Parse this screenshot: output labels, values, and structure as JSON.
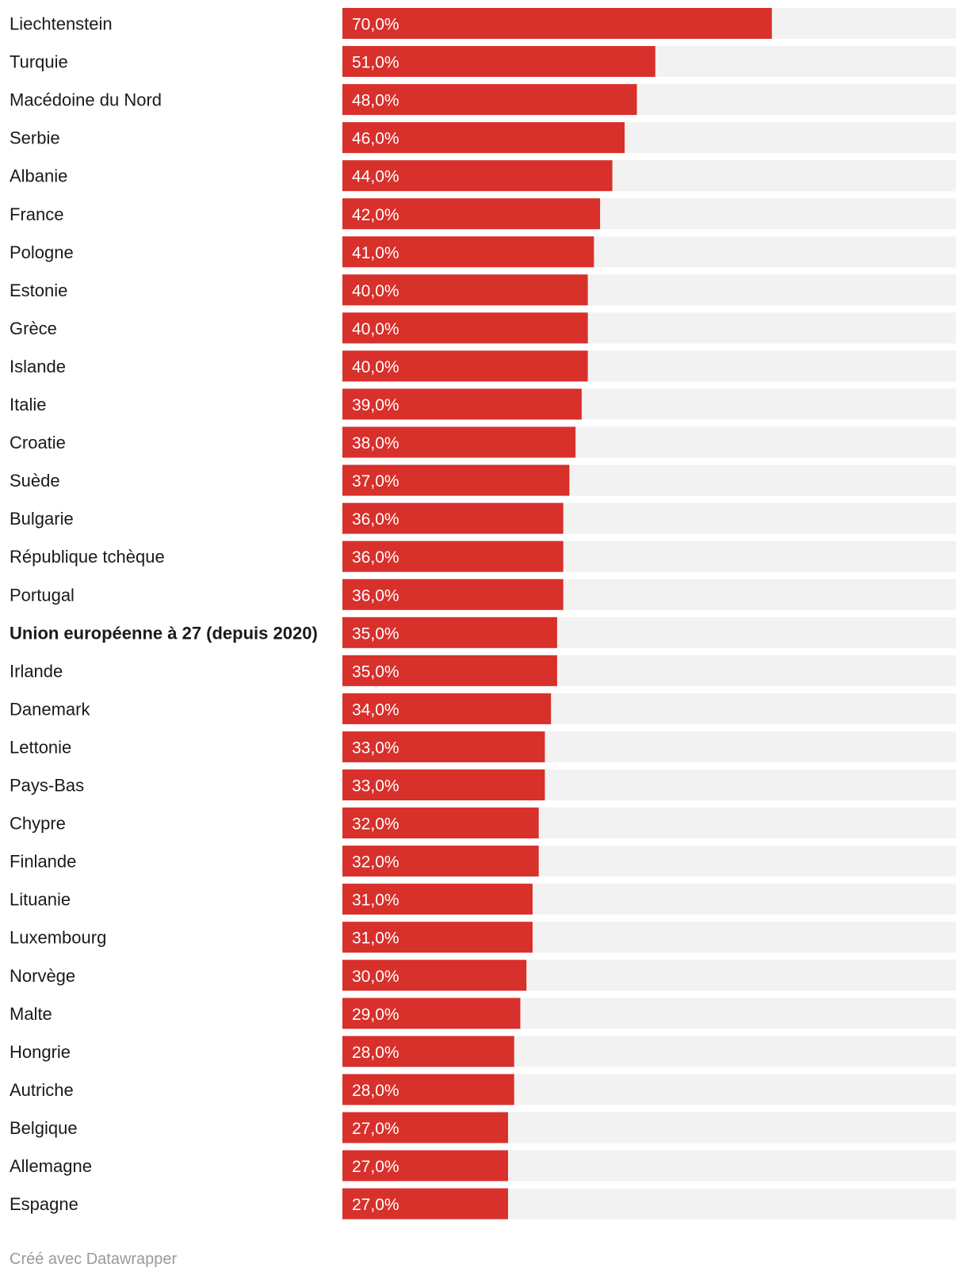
{
  "chart_data": {
    "type": "bar",
    "orientation": "horizontal",
    "title": "",
    "xlabel": "",
    "ylabel": "",
    "xlim": [
      0,
      100
    ],
    "grid": false,
    "legend": "none",
    "categories": [
      "Liechtenstein",
      "Turquie",
      "Macédoine du Nord",
      "Serbie",
      "Albanie",
      "France",
      "Pologne",
      "Estonie",
      "Grèce",
      "Islande",
      "Italie",
      "Croatie",
      "Suède",
      "Bulgarie",
      "République tchèque",
      "Portugal",
      "Union européenne à 27 (depuis 2020)",
      "Irlande",
      "Danemark",
      "Lettonie",
      "Pays-Bas",
      "Chypre",
      "Finlande",
      "Lituanie",
      "Luxembourg",
      "Norvège",
      "Malte",
      "Hongrie",
      "Autriche",
      "Belgique",
      "Allemagne",
      "Espagne"
    ],
    "values": [
      70,
      51,
      48,
      46,
      44,
      42,
      41,
      40,
      40,
      40,
      39,
      38,
      37,
      36,
      36,
      36,
      35,
      35,
      34,
      33,
      33,
      32,
      32,
      31,
      31,
      30,
      29,
      28,
      28,
      27,
      27,
      27
    ],
    "value_labels": [
      "70,0%",
      "51,0%",
      "48,0%",
      "46,0%",
      "44,0%",
      "42,0%",
      "41,0%",
      "40,0%",
      "40,0%",
      "40,0%",
      "39,0%",
      "38,0%",
      "37,0%",
      "36,0%",
      "36,0%",
      "36,0%",
      "35,0%",
      "35,0%",
      "34,0%",
      "33,0%",
      "33,0%",
      "32,0%",
      "32,0%",
      "31,0%",
      "31,0%",
      "30,0%",
      "29,0%",
      "28,0%",
      "28,0%",
      "27,0%",
      "27,0%",
      "27,0%"
    ],
    "highlighted_categories": [
      "Union européenne à 27 (depuis 2020)"
    ]
  },
  "colors": {
    "bar": "#d8302b",
    "track": "#f2f2f2",
    "label": "#1a1a1a",
    "value_text": "#ffffff",
    "footer_text": "#9a9a9a"
  },
  "footer": {
    "credit": "Créé avec Datawrapper"
  }
}
